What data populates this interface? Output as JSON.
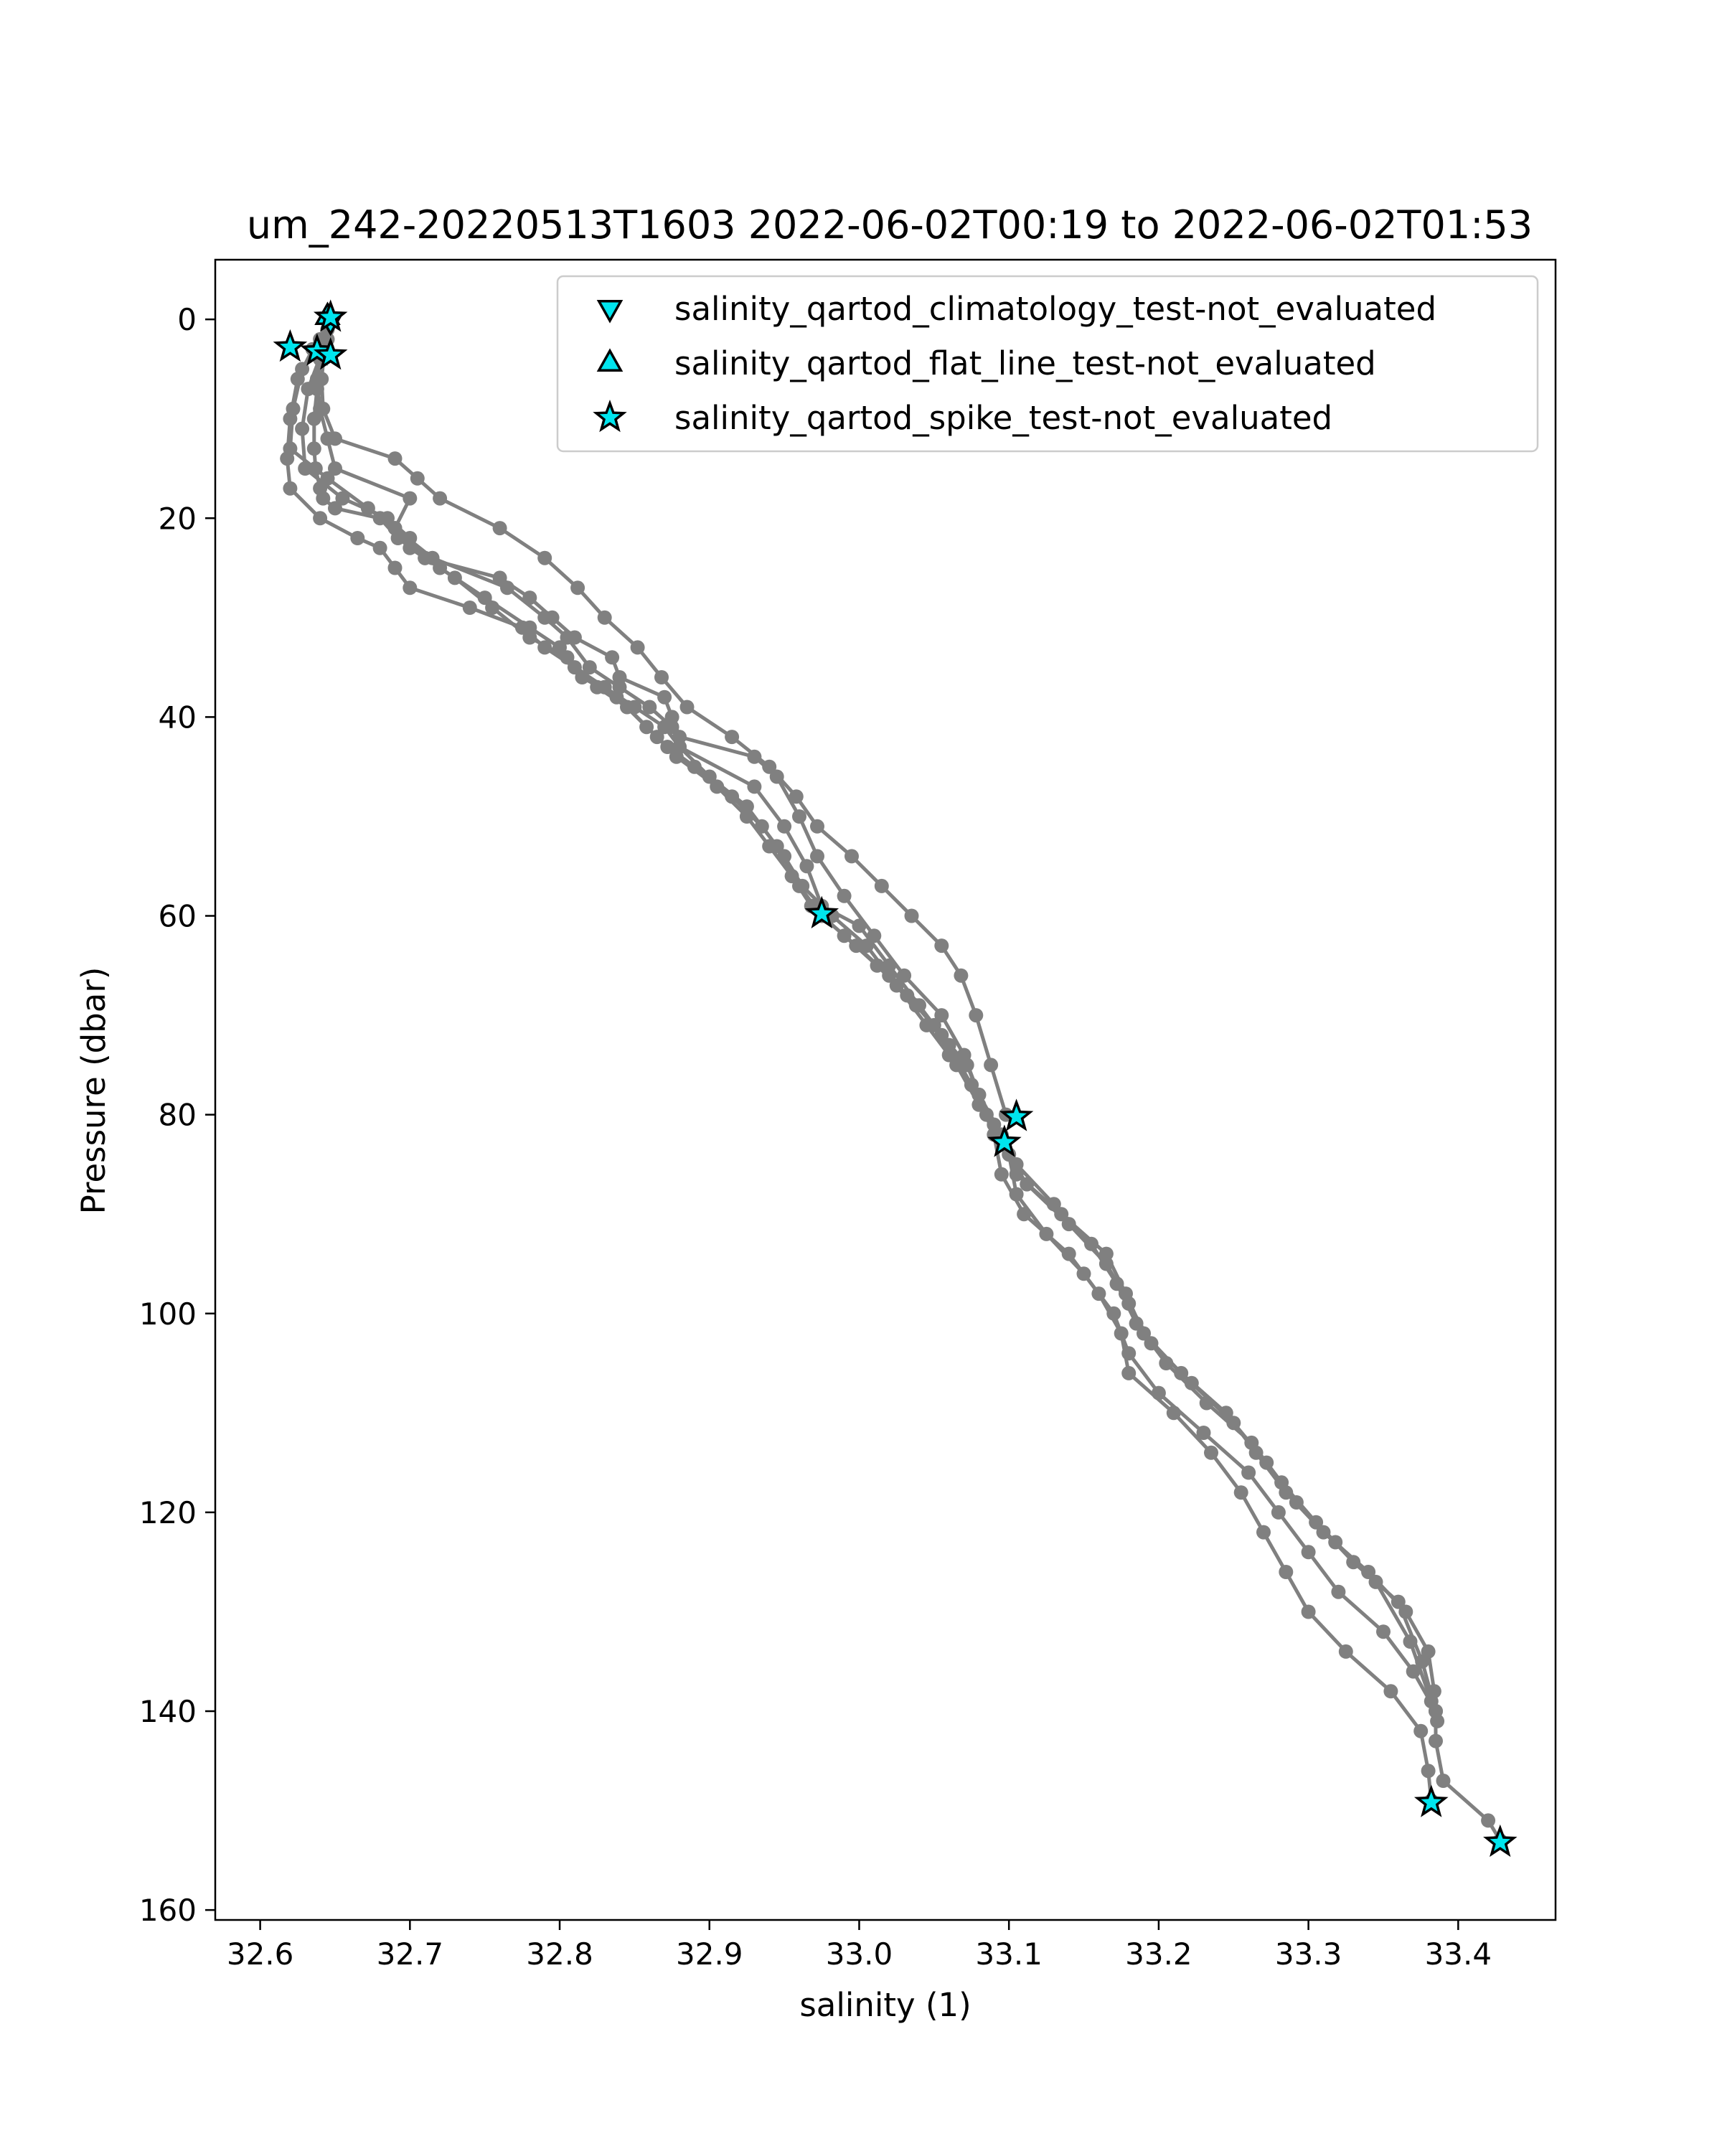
{
  "chart_data": {
    "type": "line",
    "title": "um_242-20220513T1603 2022-06-02T00:19 to 2022-06-02T01:53",
    "xlabel": "salinity (1)",
    "ylabel": "Pressure (dbar)",
    "xlim": [
      32.57,
      33.465
    ],
    "ylim": [
      161,
      -6
    ],
    "y_inverted": true,
    "grid": false,
    "legend_position": "top-right",
    "x_ticks": [
      "32.6",
      "32.7",
      "32.8",
      "32.9",
      "33.0",
      "33.1",
      "33.2",
      "33.3",
      "33.4"
    ],
    "y_ticks": [
      "0",
      "20",
      "40",
      "60",
      "80",
      "100",
      "120",
      "140",
      "160"
    ],
    "line_color": "#808080",
    "marker_color": "#00e5ee",
    "series": [
      {
        "x": [
          32.647,
          32.645,
          32.64,
          32.638,
          32.636,
          32.636,
          32.637,
          32.64,
          32.642,
          32.65,
          32.68,
          32.692,
          32.71,
          32.76,
          32.78,
          32.795,
          32.81,
          32.835,
          32.84,
          32.87,
          32.875,
          32.88,
          32.93,
          32.945,
          32.96,
          32.972,
          32.99,
          33.01,
          33.03,
          33.055,
          33.07,
          33.08,
          33.09,
          33.095,
          33.11,
          33.14,
          33.16,
          33.175,
          33.18,
          33.21,
          33.235,
          33.255,
          33.27,
          33.285,
          33.3,
          33.325,
          33.355,
          33.375,
          33.38,
          33.382
        ],
        "y": [
          0,
          2,
          4,
          7,
          10,
          13,
          15,
          17,
          18,
          19,
          20,
          22,
          24,
          26,
          28,
          30,
          32,
          34,
          36,
          38,
          40,
          42,
          44,
          46,
          50,
          54,
          58,
          62,
          66,
          70,
          74,
          78,
          82,
          86,
          90,
          94,
          98,
          102,
          106,
          110,
          114,
          118,
          122,
          126,
          130,
          134,
          138,
          142,
          146,
          149
        ]
      },
      {
        "x": [
          32.645,
          32.64,
          32.638,
          32.64,
          32.645,
          32.65,
          32.7,
          32.69,
          32.715,
          32.765,
          32.79,
          32.805,
          32.82,
          32.84,
          32.86,
          32.875,
          32.88,
          32.93,
          32.95,
          32.965,
          32.975,
          33.0,
          33.02,
          33.04,
          33.06,
          33.075,
          33.085,
          33.1,
          33.105,
          33.125,
          33.15,
          33.17,
          33.18,
          33.2,
          33.23,
          33.26,
          33.28,
          33.3,
          33.32,
          33.35,
          33.37,
          33.385,
          33.385,
          33.39,
          33.42,
          33.428
        ],
        "y": [
          1,
          3,
          6,
          9,
          12,
          15,
          18,
          21,
          24,
          27,
          30,
          32,
          35,
          37,
          39,
          41,
          43,
          47,
          51,
          55,
          59,
          61,
          65,
          69,
          73,
          77,
          80,
          84,
          88,
          92,
          96,
          100,
          104,
          108,
          112,
          116,
          120,
          124,
          128,
          132,
          136,
          140,
          143,
          147,
          151,
          153
        ]
      },
      {
        "x": [
          32.635,
          32.625,
          32.62,
          32.618,
          32.62,
          32.64,
          32.665,
          32.68,
          32.69,
          32.7,
          32.74,
          32.775,
          32.79,
          32.81,
          32.83,
          32.85,
          32.87,
          32.88,
          32.9,
          32.925,
          32.945,
          32.96,
          32.975,
          32.998,
          33.02,
          33.038,
          33.055,
          33.072,
          33.08,
          33.095,
          33.105,
          33.135,
          33.165,
          33.178,
          33.19,
          33.215,
          33.245,
          33.265,
          33.285,
          33.31,
          33.34,
          33.365,
          33.38,
          33.384,
          33.386
        ],
        "y": [
          3,
          6,
          10,
          14,
          17,
          20,
          22,
          23,
          25,
          27,
          29,
          31,
          33,
          35,
          37,
          39,
          41,
          43,
          46,
          49,
          53,
          57,
          60,
          63,
          66,
          69,
          72,
          75,
          78,
          82,
          86,
          90,
          94,
          98,
          102,
          106,
          110,
          114,
          118,
          122,
          126,
          130,
          134,
          138,
          141
        ]
      },
      {
        "x": [
          32.64,
          32.628,
          32.622,
          32.62,
          32.645,
          32.672,
          32.69,
          32.7,
          32.72,
          32.75,
          32.78,
          32.8,
          32.815,
          32.838,
          32.858,
          32.872,
          32.89,
          32.915,
          32.935,
          32.95,
          32.962,
          32.982,
          33.005,
          33.025,
          33.045,
          33.06,
          33.075,
          33.09,
          33.105,
          33.13,
          33.155,
          33.172,
          33.185,
          33.205,
          33.232,
          33.262,
          33.282,
          33.305,
          33.33,
          33.36,
          33.376,
          33.385
        ],
        "y": [
          2,
          5,
          9,
          13,
          16,
          19,
          21,
          23,
          25,
          28,
          31,
          33,
          36,
          38,
          41,
          43,
          45,
          48,
          51,
          54,
          57,
          60,
          63,
          67,
          71,
          74,
          77,
          81,
          85,
          89,
          93,
          97,
          101,
          105,
          109,
          113,
          117,
          121,
          125,
          129,
          135,
          140
        ]
      },
      {
        "x": [
          32.642,
          32.632,
          32.628,
          32.63,
          32.655,
          32.685,
          32.7,
          32.71,
          32.73,
          32.755,
          32.78,
          32.805,
          32.825,
          32.845,
          32.865,
          32.878,
          32.905,
          32.925,
          32.94,
          32.955,
          32.968,
          32.99,
          33.012,
          33.032,
          33.05,
          33.065,
          33.08,
          33.095,
          33.112,
          33.14,
          33.165,
          33.18,
          33.195,
          33.222,
          33.25,
          33.272,
          33.292,
          33.318,
          33.345,
          33.368,
          33.382
        ],
        "y": [
          3,
          7,
          11,
          15,
          18,
          20,
          22,
          24,
          26,
          29,
          32,
          34,
          37,
          39,
          42,
          44,
          47,
          50,
          53,
          56,
          59,
          62,
          65,
          68,
          71,
          75,
          79,
          83,
          87,
          91,
          95,
          99,
          103,
          107,
          111,
          115,
          119,
          123,
          127,
          133,
          139
        ]
      },
      {
        "x": [
          32.648,
          32.643,
          32.641,
          32.642,
          32.65,
          32.69,
          32.705,
          32.72,
          32.76,
          32.79,
          32.812,
          32.83,
          32.852,
          32.868,
          32.885,
          32.915,
          32.94,
          32.958,
          32.972,
          32.995,
          33.015,
          33.035,
          33.055,
          33.068,
          33.078,
          33.088,
          33.098
        ],
        "y": [
          0,
          3,
          6,
          9,
          12,
          14,
          16,
          18,
          21,
          24,
          27,
          30,
          33,
          36,
          39,
          42,
          45,
          48,
          51,
          54,
          57,
          60,
          63,
          66,
          70,
          75,
          80
        ]
      }
    ],
    "flagged_points": [
      {
        "label": "salinity_qartod_climatology_test-not_evaluated",
        "marker": "down-triangle",
        "points": [
          [
            32.647,
            0.2
          ]
        ]
      },
      {
        "label": "salinity_qartod_flat_line_test-not_evaluated",
        "marker": "up-triangle",
        "points": [
          [
            32.645,
            -0.3
          ]
        ]
      },
      {
        "label": "salinity_qartod_spike_test-not_evaluated",
        "marker": "star",
        "points": [
          [
            32.647,
            -0.2
          ],
          [
            32.62,
            2.8
          ],
          [
            32.638,
            3.2
          ],
          [
            32.647,
            3.6
          ],
          [
            32.975,
            59.8
          ],
          [
            33.105,
            80.2
          ],
          [
            33.097,
            82.8
          ],
          [
            33.382,
            149.2
          ],
          [
            33.428,
            153.2
          ]
        ]
      }
    ]
  }
}
